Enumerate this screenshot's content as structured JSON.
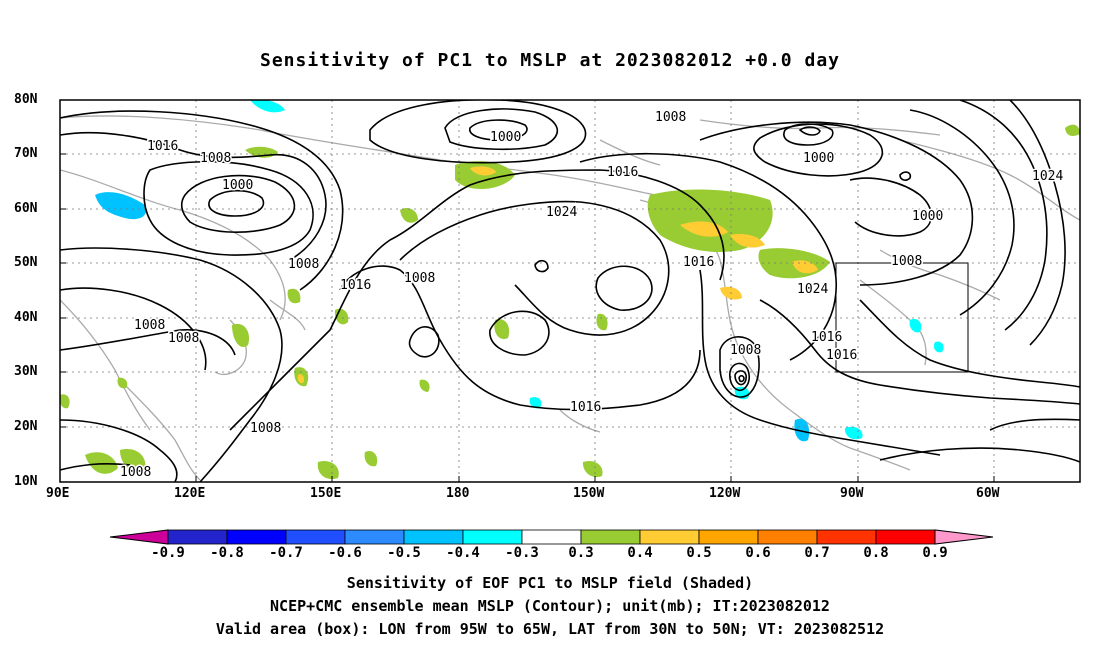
{
  "title": "Sensitivity of PC1 to MSLP at 2023082012 +0.0 day",
  "lat_labels": [
    "80N",
    "70N",
    "60N",
    "50N",
    "40N",
    "30N",
    "20N",
    "10N"
  ],
  "lon_labels": [
    "90E",
    "120E",
    "150E",
    "180",
    "150W",
    "120W",
    "90W",
    "60W"
  ],
  "contour_labels": [
    {
      "text": "1016"
    },
    {
      "text": "1008"
    },
    {
      "text": "1000"
    },
    {
      "text": "1008"
    },
    {
      "text": "1016"
    },
    {
      "text": "1008"
    },
    {
      "text": "1008"
    },
    {
      "text": "1008"
    },
    {
      "text": "1008"
    },
    {
      "text": "1008"
    },
    {
      "text": "1000"
    },
    {
      "text": "1016"
    },
    {
      "text": "1024"
    },
    {
      "text": "1016"
    },
    {
      "text": "1008"
    },
    {
      "text": "1000"
    },
    {
      "text": "1000"
    },
    {
      "text": "1024"
    },
    {
      "text": "1008"
    },
    {
      "text": "1024"
    },
    {
      "text": "1016"
    },
    {
      "text": "1016"
    },
    {
      "text": "1008"
    },
    {
      "text": "1016"
    }
  ],
  "colorbar": {
    "colors": [
      "#2424cc",
      "#0000ff",
      "#1f4fff",
      "#2c8cff",
      "#00c2ff",
      "#00ffff",
      "#ffffff",
      "#99cc33",
      "#ffcc33",
      "#ffa500",
      "#ff7f00",
      "#ff3300",
      "#ff0000"
    ],
    "left_tip_color": "#cc0099",
    "right_tip_color": "#ff99cc",
    "labels": [
      "-0.9",
      "-0.8",
      "-0.7",
      "-0.6",
      "-0.5",
      "-0.4",
      "-0.3",
      "0.3",
      "0.4",
      "0.5",
      "0.6",
      "0.7",
      "0.8",
      "0.9"
    ]
  },
  "captions": {
    "line1": "Sensitivity of EOF PC1 to MSLP field (Shaded)",
    "line2": "NCEP+CMC ensemble mean MSLP (Contour); unit(mb); IT:2023082012",
    "line3": "Valid area (box): LON from 95W to 65W, LAT from 30N to 50N; VT: 2023082512"
  },
  "colors": {
    "contour": "#000000",
    "coast": "#aaaaaa",
    "grid": "#777777",
    "box": "#000000"
  }
}
